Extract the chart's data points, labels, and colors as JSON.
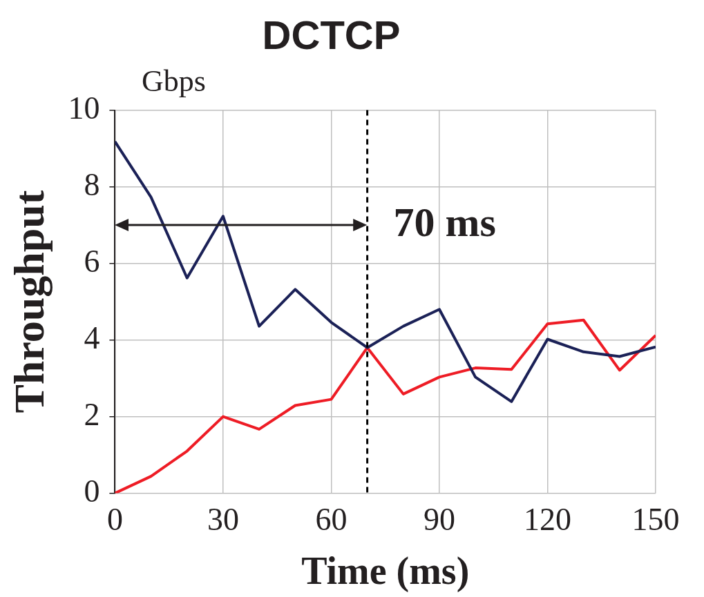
{
  "chart_data": {
    "type": "line",
    "title": "DCTCP",
    "xlabel": "Time (ms)",
    "ylabel": "Throughput",
    "x": [
      0,
      10,
      20,
      30,
      40,
      50,
      60,
      70,
      80,
      90,
      100,
      110,
      120,
      130,
      140,
      150
    ],
    "series": [
      {
        "color": "#1b2157",
        "values": [
          9.18,
          7.73,
          5.62,
          7.23,
          4.36,
          5.32,
          4.46,
          3.8,
          4.36,
          4.8,
          3.03,
          2.39,
          4.02,
          3.69,
          3.57,
          3.82
        ]
      },
      {
        "color": "#ee1c25",
        "values": [
          0,
          0.44,
          1.1,
          2.0,
          1.67,
          2.29,
          2.45,
          3.8,
          2.59,
          3.03,
          3.27,
          3.23,
          4.42,
          4.52,
          3.21,
          4.12
        ]
      }
    ],
    "xlim": [
      0,
      150
    ],
    "xticks": [
      0,
      30,
      60,
      90,
      120,
      150
    ],
    "ylim": [
      0,
      10
    ],
    "yticks": [
      0,
      2,
      4,
      6,
      8,
      10
    ],
    "grid": true,
    "legend": false,
    "marker": "none",
    "line_style": "solid",
    "ref_lines": [
      {
        "axis": "x",
        "value": 70,
        "color": "#000000",
        "line_style": "dashed"
      }
    ],
    "annotations": [
      "Gbps",
      {
        "text": "70 ms",
        "x": 70,
        "y": 7
      }
    ]
  }
}
